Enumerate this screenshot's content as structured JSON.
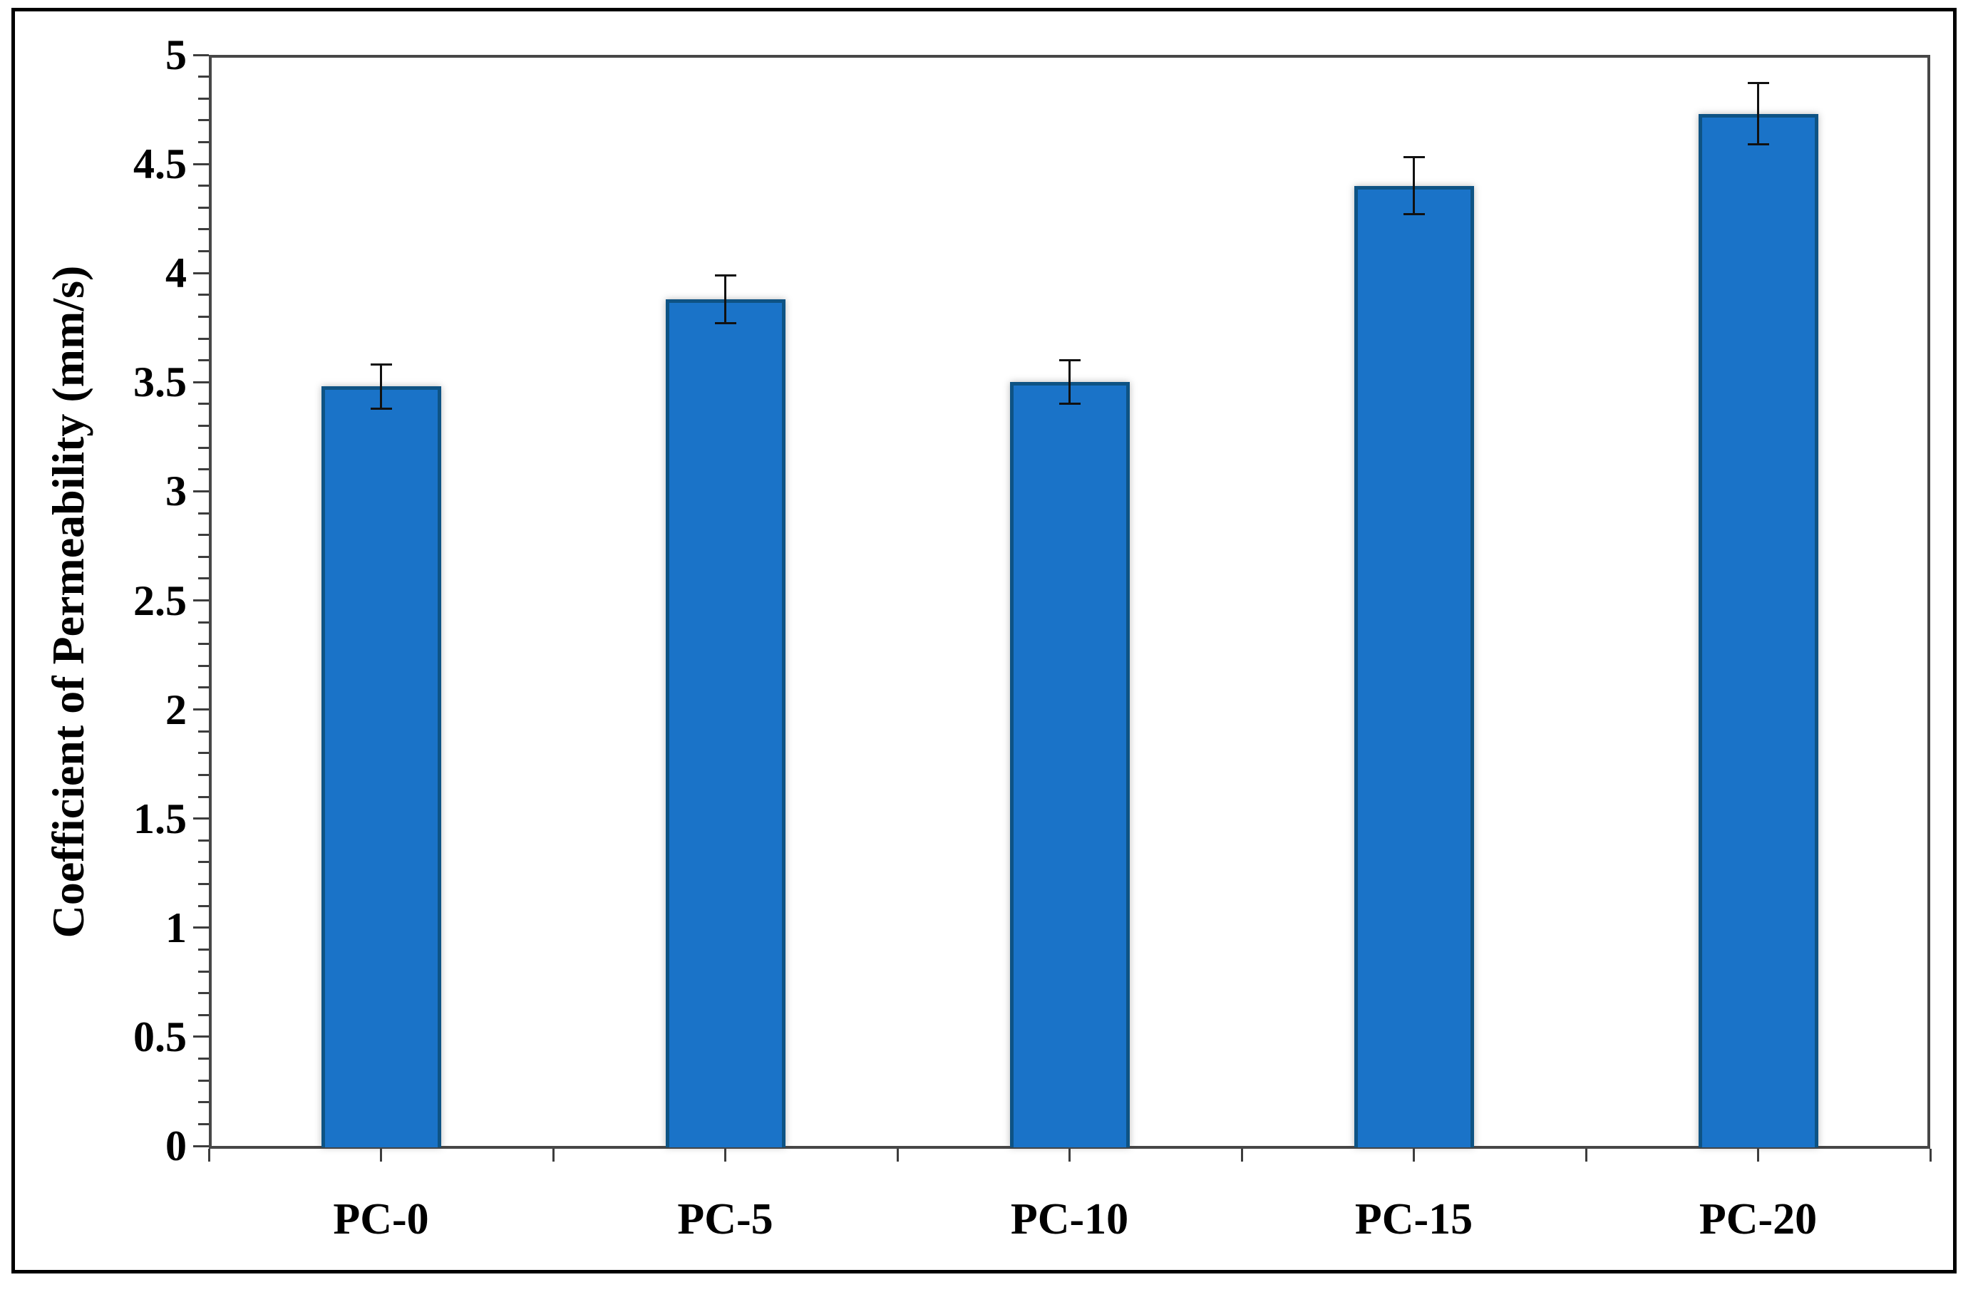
{
  "figure": {
    "outer_frame_color": "#000000",
    "plot_border_color": "#474747",
    "background": "#ffffff"
  },
  "chart_data": {
    "type": "bar",
    "title": "",
    "categories": [
      "PC-0",
      "PC-5",
      "PC-10",
      "PC-15",
      "PC-20"
    ],
    "values": [
      3.48,
      3.88,
      3.5,
      4.4,
      4.73
    ],
    "error_bars": [
      0.1,
      0.11,
      0.1,
      0.13,
      0.14
    ],
    "xlabel": "",
    "ylabel": "Coefficient of Permeability (mm/s)",
    "ylim": [
      0,
      5
    ],
    "ytick_interval": 0.5,
    "yminor_tick_interval": 0.1,
    "ytick_labels": [
      "0",
      "0.5",
      "1",
      "1.5",
      "2",
      "2.5",
      "3",
      "3.5",
      "4",
      "4.5",
      "5"
    ],
    "xtick_interval_categories": 0.5,
    "grid": false,
    "legend": null,
    "bar_fill_color": "#1a73c8",
    "bar_border_color": "#0e5384",
    "error_bar_color": "#111111",
    "axis_color": "#3d3d3d",
    "text_color": "#000000"
  }
}
